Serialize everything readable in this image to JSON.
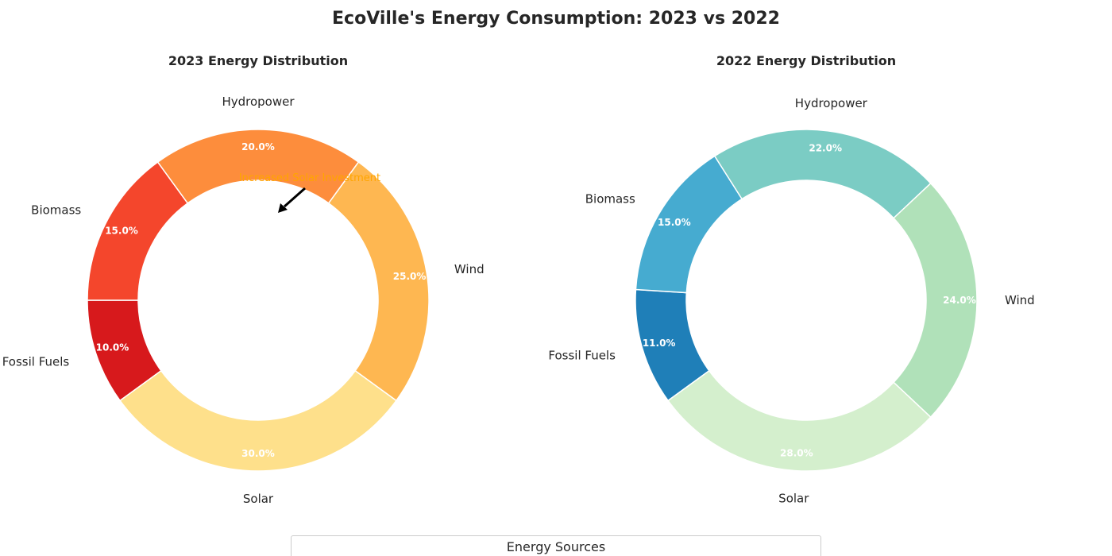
{
  "chart_data": {
    "type": "pie",
    "variant": "donut",
    "title": "EcoVille's Energy Consumption: 2023 vs 2022",
    "legend_title": "Energy Sources",
    "legend_position": "bottom-center",
    "charts": [
      {
        "title": "2023 Energy Distribution",
        "categories": [
          "Fossil Fuels",
          "Biomass",
          "Hydropower",
          "Wind",
          "Solar"
        ],
        "values": [
          10.0,
          15.0,
          20.0,
          25.0,
          30.0
        ],
        "pct_labels": [
          "10.0%",
          "15.0%",
          "20.0%",
          "25.0%",
          "30.0%"
        ],
        "colors": [
          "#d7191c",
          "#f4462c",
          "#fd8d3c",
          "#feb751",
          "#fee08b"
        ],
        "annotation": {
          "text": "Increased Solar Investment",
          "color": "#ffa500",
          "target": "Solar"
        }
      },
      {
        "title": "2022 Energy Distribution",
        "categories": [
          "Fossil Fuels",
          "Biomass",
          "Hydropower",
          "Wind",
          "Solar"
        ],
        "values": [
          11.0,
          15.0,
          22.0,
          24.0,
          28.0
        ],
        "pct_labels": [
          "11.0%",
          "15.0%",
          "22.0%",
          "24.0%",
          "28.0%"
        ],
        "colors": [
          "#1f7fb8",
          "#46abd0",
          "#7bccc4",
          "#b0e1b9",
          "#d4efcd"
        ]
      }
    ]
  }
}
